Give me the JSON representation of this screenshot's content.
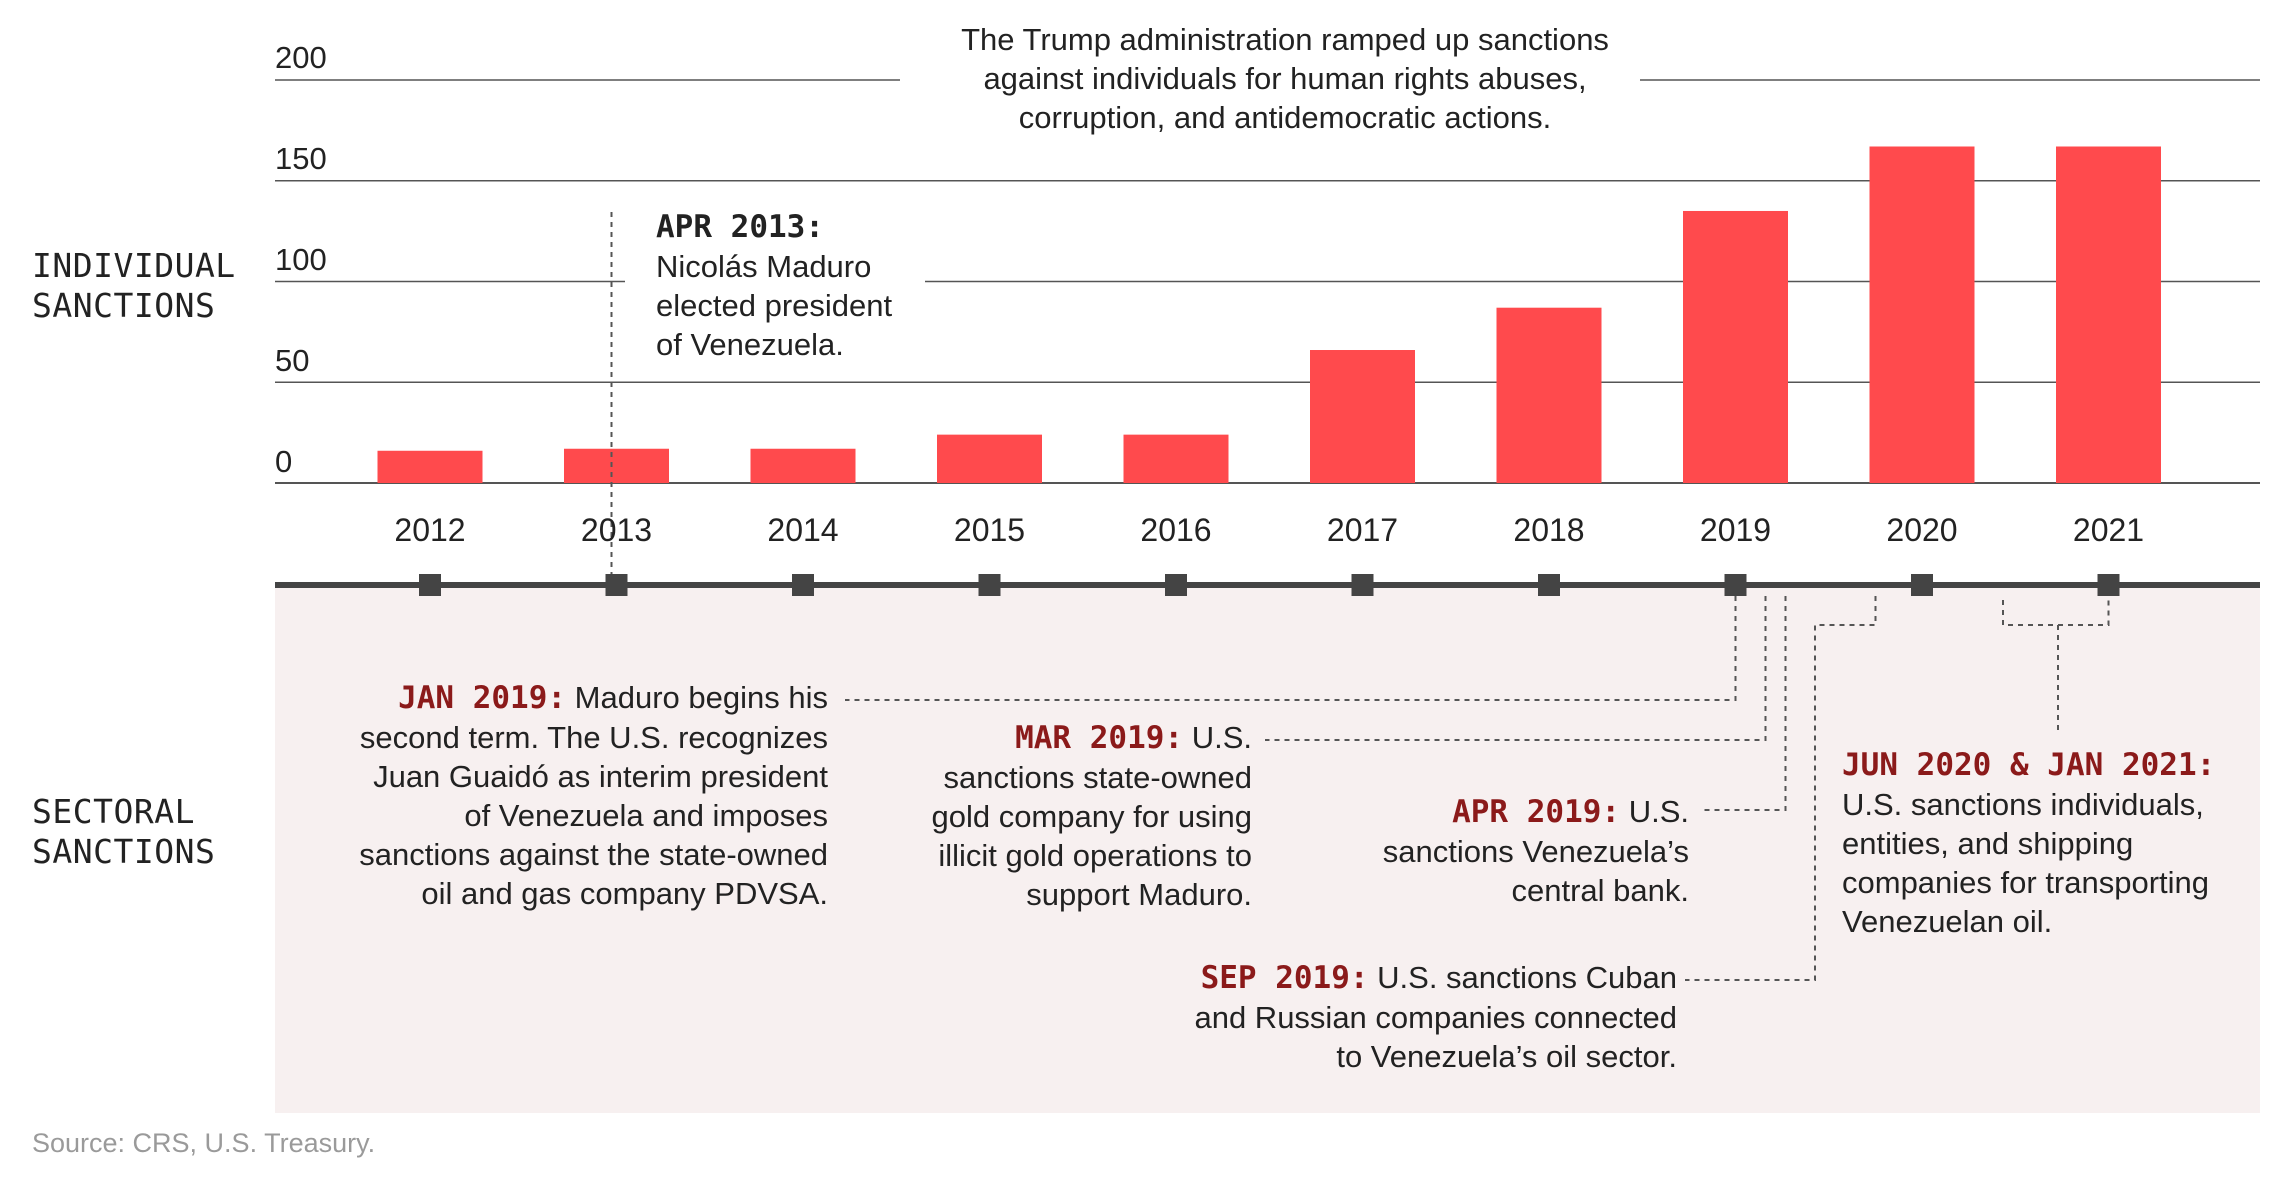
{
  "row_labels": {
    "individual_line1": "INDIVIDUAL",
    "individual_line2": "SANCTIONS",
    "sectoral_line1": "SECTORAL",
    "sectoral_line2": "SANCTIONS"
  },
  "chart_data": {
    "type": "bar",
    "title": "",
    "xlabel": "",
    "ylabel": "",
    "ylim": [
      0,
      200
    ],
    "yticks": [
      0,
      50,
      100,
      150,
      200
    ],
    "grid": true,
    "categories": [
      "2012",
      "2013",
      "2014",
      "2015",
      "2016",
      "2017",
      "2018",
      "2019",
      "2020",
      "2021"
    ],
    "values": [
      16,
      17,
      17,
      24,
      24,
      66,
      87,
      135,
      167,
      167
    ]
  },
  "annotations": {
    "trump_line1": "The Trump administration ramped up sanctions",
    "trump_line2": "against individuals for human rights abuses,",
    "trump_line3": "corruption, and antidemocratic actions.",
    "apr2013_lead": "APR 2013:",
    "apr2013_line1": "Nicolás Maduro",
    "apr2013_line2": "elected president",
    "apr2013_line3": "of Venezuela."
  },
  "events": {
    "jan2019": {
      "lead": "JAN 2019:",
      "line1": " Maduro begins his",
      "line2": "second term. The U.S. recognizes",
      "line3": "Juan Guaidó as interim president",
      "line4": "of Venezuela and imposes",
      "line5": "sanctions against the state-owned",
      "line6": "oil and gas company PDVSA."
    },
    "mar2019": {
      "lead": "MAR 2019:",
      "line1": " U.S.",
      "line2": "sanctions state-owned",
      "line3": "gold company for using",
      "line4": "illicit gold operations to",
      "line5": "support Maduro."
    },
    "apr2019": {
      "lead": "APR 2019:",
      "line1": " U.S.",
      "line2": "sanctions Venezuela’s",
      "line3": "central bank."
    },
    "sep2019": {
      "lead": "SEP 2019:",
      "line1": " U.S. sanctions Cuban",
      "line2": "and Russian companies connected",
      "line3": "to Venezuela’s oil sector."
    },
    "jun2020": {
      "lead": "JUN 2020 & JAN 2021:",
      "line1": "U.S. sanctions individuals,",
      "line2": "entities, and shipping",
      "line3": "companies for transporting",
      "line4": "Venezuelan oil."
    }
  },
  "colors": {
    "bar": "#ff4a4d",
    "lead_red": "#8b1a1a",
    "band": "#f7f0f0",
    "axis": "#444444"
  },
  "source": "Source: CRS, U.S. Treasury."
}
